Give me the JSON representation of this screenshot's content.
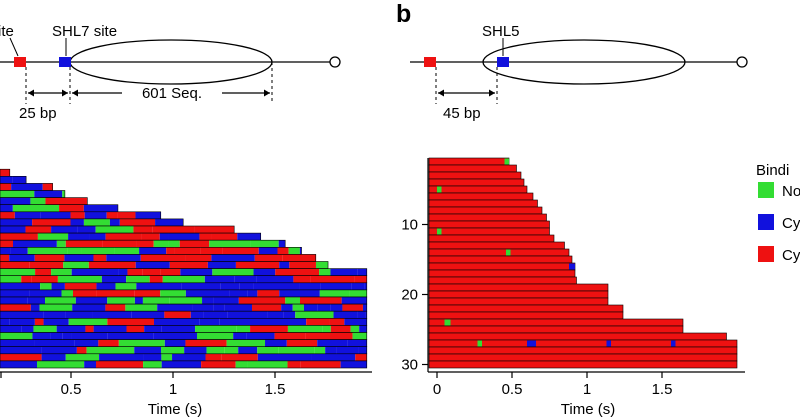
{
  "panel_b": {
    "label": "b"
  },
  "panel_a_diagram": {
    "site_label_partial": "ite",
    "shl7_label": "SHL7 site",
    "spacer_label": "25 bp",
    "sequence_label": "601 Seq."
  },
  "panel_b_diagram": {
    "shl5_label": "SHL5",
    "spacer_label": "45 bp"
  },
  "legend": {
    "title_partial": "Bindi",
    "items": [
      {
        "label_partial": "No",
        "color": "#33dd33"
      },
      {
        "label_partial": "Cy",
        "color": "#1111dd"
      },
      {
        "label_partial": "Cy",
        "color": "#ee1111"
      }
    ]
  },
  "colors": {
    "red": "#ee1111",
    "blue": "#1111dd",
    "green": "#33dd33"
  },
  "chart_data": [
    {
      "type": "heatmap",
      "panel": "a",
      "description_kind": "single-molecule binding-state traces (rows = molecules)",
      "xlabel": "Time (s)",
      "x_ticks": [
        0.5,
        1,
        1.5
      ],
      "xlim": [
        -0.42,
        1.95
      ],
      "states": [
        "green",
        "blue",
        "red"
      ],
      "row_end_times": [
        -0.01,
        0.05,
        0.2,
        0.28,
        0.41,
        0.47,
        0.58,
        0.73,
        0.94,
        1.05,
        1.3,
        1.43,
        1.55,
        1.63,
        1.7,
        1.76,
        1.95,
        1.95,
        1.95,
        1.95,
        1.95,
        1.95,
        1.95,
        1.95,
        1.95,
        1.95,
        1.95,
        1.95,
        1.95,
        1.95
      ]
    },
    {
      "type": "heatmap",
      "panel": "b",
      "description_kind": "single-molecule binding-state traces (rows = molecules)",
      "xlabel": "Time (s)",
      "ylabel": "",
      "x_ticks": [
        0,
        0.5,
        1,
        1.5
      ],
      "y_ticks": [
        10,
        20,
        30
      ],
      "xlim": [
        -0.03,
        2.0
      ],
      "ylim": [
        0.5,
        30.5
      ],
      "states": [
        "green",
        "blue",
        "red"
      ],
      "row_end_times": [
        0.48,
        0.53,
        0.56,
        0.58,
        0.6,
        0.64,
        0.67,
        0.7,
        0.73,
        0.75,
        0.75,
        0.78,
        0.85,
        0.88,
        0.9,
        0.92,
        0.92,
        0.93,
        1.14,
        1.14,
        1.14,
        1.24,
        1.24,
        1.64,
        1.64,
        1.93,
        2.0,
        2.0,
        2.0,
        2.0
      ],
      "events": [
        {
          "row": 1,
          "t0": 0.45,
          "t1": 0.48,
          "state": "green"
        },
        {
          "row": 5,
          "t0": 0.0,
          "t1": 0.03,
          "state": "green"
        },
        {
          "row": 11,
          "t0": 0.0,
          "t1": 0.03,
          "state": "green"
        },
        {
          "row": 14,
          "t0": 0.46,
          "t1": 0.49,
          "state": "green"
        },
        {
          "row": 16,
          "t0": 0.88,
          "t1": 0.92,
          "state": "blue"
        },
        {
          "row": 24,
          "t0": 0.05,
          "t1": 0.09,
          "state": "green"
        },
        {
          "row": 27,
          "t0": 0.27,
          "t1": 0.3,
          "state": "green"
        },
        {
          "row": 27,
          "t0": 0.6,
          "t1": 0.66,
          "state": "blue"
        },
        {
          "row": 27,
          "t0": 1.13,
          "t1": 1.16,
          "state": "blue"
        },
        {
          "row": 27,
          "t0": 1.56,
          "t1": 1.59,
          "state": "blue"
        }
      ]
    }
  ]
}
